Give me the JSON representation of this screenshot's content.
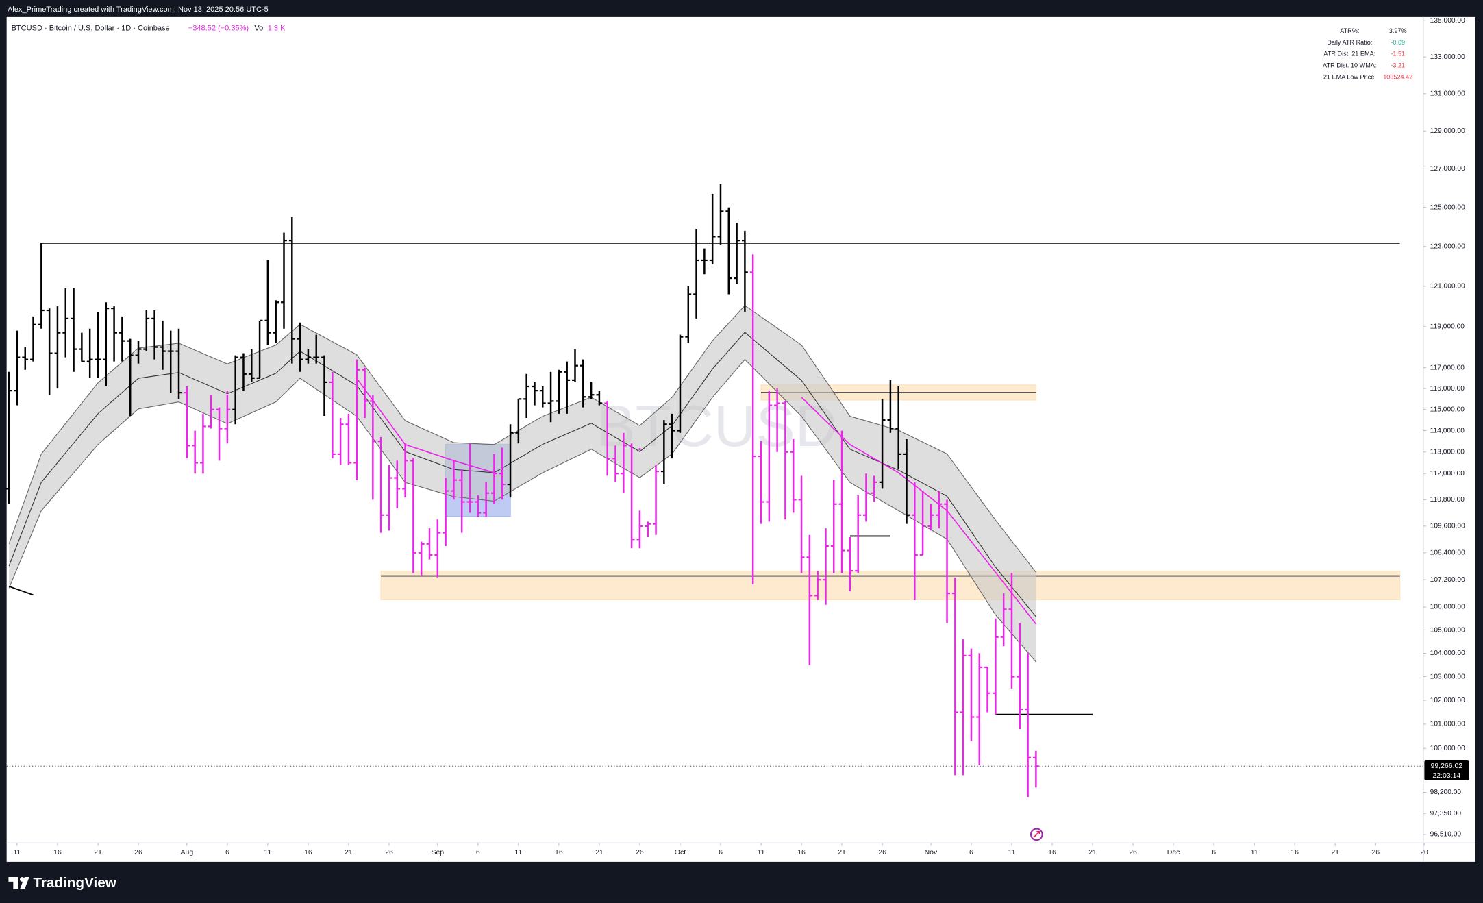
{
  "header": "Alex_PrimeTrading created with TradingView.com, Nov 13, 2025 20:56 UTC-5",
  "brand": "TradingView",
  "watermark": "BTCUSD",
  "legend": {
    "symbol": "BTCUSD · Bitcoin / U.S. Dollar · 1D · Coinbase",
    "change": "−348.52 (−0.35%)",
    "volume_label": "Vol",
    "volume": "1.3 K"
  },
  "table": {
    "rows": [
      [
        "ATR%:",
        "3.97%"
      ],
      [
        "Daily ATR Ratio:",
        "-0.09"
      ],
      [
        "ATR Dist. 21 EMA:",
        "-1.51"
      ],
      [
        "ATR Dist. 10 WMA:",
        "-3.21"
      ],
      [
        "21 EMA Low Price:",
        "103524.42"
      ]
    ],
    "value_colors": [
      "#131722",
      "#22ab94",
      "#f23645",
      "#f23645",
      "#f23645"
    ]
  },
  "chart_data": {
    "type": "ohlc",
    "log_scale": true,
    "grid": false,
    "colors": [
      "#000000",
      "#e926e9"
    ],
    "color_index": [
      0,
      0,
      0,
      0,
      0,
      0,
      0,
      0,
      0,
      0,
      0,
      0,
      0,
      0,
      0,
      0,
      0,
      0,
      0,
      0,
      0,
      0,
      1,
      1,
      1,
      1,
      1,
      1,
      0,
      0,
      0,
      0,
      0,
      0,
      0,
      0,
      0,
      0,
      0,
      0,
      1,
      1,
      1,
      1,
      1,
      1,
      1,
      1,
      1,
      1,
      1,
      1,
      1,
      1,
      1,
      1,
      1,
      1,
      1,
      1,
      1,
      1,
      0,
      0,
      0,
      0,
      0,
      0,
      0,
      0,
      0,
      0,
      0,
      0,
      1,
      1,
      1,
      1,
      1,
      1,
      1,
      0,
      0,
      0,
      0,
      0,
      0,
      0,
      0,
      0,
      0,
      0,
      1,
      1,
      1,
      1,
      1,
      1,
      1,
      1,
      1,
      1,
      1,
      1,
      1,
      1,
      1,
      1,
      0,
      0,
      0,
      0,
      1,
      1,
      1,
      1,
      1,
      1,
      1,
      1,
      1,
      1,
      1,
      1,
      1,
      1,
      1,
      1
    ],
    "x": [
      "Jul 10",
      "Jul 11",
      "Jul 12",
      "Jul 13",
      "Jul 14",
      "Jul 15",
      "Jul 16",
      "Jul 17",
      "Jul 18",
      "Jul 19",
      "Jul 20",
      "Jul 21",
      "Jul 22",
      "Jul 23",
      "Jul 24",
      "Jul 25",
      "Jul 26",
      "Jul 27",
      "Jul 28",
      "Jul 29",
      "Jul 30",
      "Jul 31",
      "Aug 1",
      "Aug 2",
      "Aug 3",
      "Aug 4",
      "Aug 5",
      "Aug 6",
      "Aug 7",
      "Aug 8",
      "Aug 9",
      "Aug 10",
      "Aug 11",
      "Aug 12",
      "Aug 13",
      "Aug 14",
      "Aug 15",
      "Aug 16",
      "Aug 17",
      "Aug 18",
      "Aug 19",
      "Aug 20",
      "Aug 21",
      "Aug 22",
      "Aug 23",
      "Aug 24",
      "Aug 25",
      "Aug 26",
      "Aug 27",
      "Aug 28",
      "Aug 29",
      "Aug 30",
      "Aug 31",
      "Sep 1",
      "Sep 2",
      "Sep 3",
      "Sep 4",
      "Sep 5",
      "Sep 6",
      "Sep 7",
      "Sep 8",
      "Sep 9",
      "Sep 10",
      "Sep 11",
      "Sep 12",
      "Sep 13",
      "Sep 14",
      "Sep 15",
      "Sep 16",
      "Sep 17",
      "Sep 18",
      "Sep 19",
      "Sep 20",
      "Sep 21",
      "Sep 22",
      "Sep 23",
      "Sep 24",
      "Sep 25",
      "Sep 26",
      "Sep 27",
      "Sep 28",
      "Sep 29",
      "Sep 30",
      "Oct 1",
      "Oct 2",
      "Oct 3",
      "Oct 4",
      "Oct 5",
      "Oct 6",
      "Oct 7",
      "Oct 8",
      "Oct 9",
      "Oct 10",
      "Oct 11",
      "Oct 12",
      "Oct 13",
      "Oct 14",
      "Oct 15",
      "Oct 16",
      "Oct 17",
      "Oct 18",
      "Oct 19",
      "Oct 20",
      "Oct 21",
      "Oct 22",
      "Oct 23",
      "Oct 24",
      "Oct 25",
      "Oct 26",
      "Oct 27",
      "Oct 28",
      "Oct 29",
      "Oct 30",
      "Oct 31",
      "Nov 1",
      "Nov 2",
      "Nov 3",
      "Nov 4",
      "Nov 5",
      "Nov 6",
      "Nov 7",
      "Nov 8",
      "Nov 9",
      "Nov 10",
      "Nov 11",
      "Nov 12",
      "Nov 13",
      "Nov 14"
    ],
    "open": [
      111300,
      115900,
      117500,
      117400,
      119100,
      119800,
      117700,
      118700,
      119400,
      117900,
      117300,
      117400,
      117400,
      119900,
      118700,
      118300,
      117600,
      117900,
      119400,
      118000,
      117800,
      117800,
      115800,
      113300,
      112500,
      114200,
      115000,
      114100,
      115000,
      117500,
      116700,
      116500,
      119300,
      118700,
      120200,
      123300,
      118400,
      117400,
      117500,
      117500,
      116300,
      112900,
      114300,
      112500,
      116900,
      115400,
      113500,
      110100,
      111800,
      111300,
      112600,
      108400,
      108800,
      108300,
      109300,
      111200,
      111700,
      110700,
      110700,
      110200,
      111100,
      112000,
      111500,
      113900,
      115500,
      116100,
      115900,
      115300,
      115400,
      116800,
      116400,
      117100,
      115600,
      115700,
      115300,
      112700,
      112000,
      113300,
      109000,
      109600,
      109700,
      112100,
      114300,
      114000,
      118500,
      120600,
      122300,
      122300,
      123500,
      124800,
      121400,
      123300,
      121700,
      112800,
      110700,
      115200,
      115300,
      113000,
      110800,
      108200,
      106500,
      107200,
      108700,
      110600,
      108500,
      107600,
      110100,
      111100,
      111600,
      114500,
      114100,
      112900,
      110100,
      108300,
      109600,
      110100,
      110600,
      106600,
      101500,
      103900,
      101300,
      103400,
      102300,
      104700,
      105900,
      103000,
      101600,
      99614.54
    ],
    "high": [
      116800,
      118800,
      118000,
      119500,
      123200,
      119900,
      120000,
      120900,
      120900,
      118700,
      118900,
      119700,
      120200,
      120000,
      119500,
      118400,
      118300,
      119800,
      119800,
      119300,
      118800,
      118900,
      116100,
      114000,
      114800,
      115700,
      115100,
      115700,
      117600,
      117700,
      117900,
      119300,
      122300,
      120300,
      123700,
      124500,
      119200,
      117900,
      118600,
      117600,
      116800,
      114600,
      114800,
      117400,
      117000,
      115700,
      113700,
      112400,
      112600,
      113400,
      112700,
      108900,
      109500,
      109900,
      111800,
      112600,
      112200,
      113400,
      111000,
      111600,
      112900,
      113200,
      114300,
      115500,
      116700,
      116300,
      116100,
      116800,
      116900,
      117300,
      117900,
      117400,
      116300,
      115900,
      115400,
      113300,
      113900,
      113400,
      110300,
      109800,
      112400,
      114500,
      114800,
      118600,
      121000,
      123900,
      122900,
      125700,
      126200,
      125000,
      124200,
      123800,
      122600,
      113500,
      115900,
      116000,
      115400,
      113600,
      111900,
      109200,
      107600,
      109500,
      111700,
      114000,
      109100,
      111000,
      112000,
      111900,
      115500,
      116400,
      116100,
      113600,
      111600,
      111200,
      110600,
      111200,
      110800,
      107300,
      104600,
      104200,
      104000,
      103400,
      105500,
      106600,
      107500,
      105300,
      104000,
      99900
    ],
    "low": [
      110600,
      115200,
      116900,
      117300,
      118900,
      115700,
      116000,
      117500,
      116800,
      117300,
      116500,
      116500,
      116100,
      117300,
      117300,
      114700,
      117200,
      117800,
      117400,
      116900,
      115800,
      115500,
      112700,
      112000,
      112000,
      114100,
      112600,
      113400,
      114300,
      115900,
      116300,
      116500,
      118100,
      118200,
      118900,
      117200,
      116800,
      117200,
      117200,
      114700,
      112700,
      112400,
      112400,
      111700,
      114600,
      110800,
      109300,
      109400,
      110400,
      110900,
      107500,
      107400,
      108100,
      107300,
      108700,
      110800,
      109300,
      110200,
      110000,
      110000,
      110600,
      110800,
      110900,
      113400,
      114600,
      115200,
      115100,
      114400,
      114800,
      114800,
      116300,
      115100,
      115500,
      115200,
      111900,
      111600,
      111100,
      108600,
      108600,
      109100,
      109200,
      111500,
      112700,
      113900,
      118200,
      119400,
      121600,
      122100,
      123100,
      120600,
      121100,
      119700,
      107000,
      109700,
      109800,
      113000,
      109900,
      110200,
      107500,
      103500,
      106300,
      106100,
      107500,
      107500,
      106700,
      107500,
      109800,
      110700,
      111300,
      113900,
      112200,
      109700,
      106300,
      108300,
      109400,
      109500,
      105300,
      98900,
      98900,
      100300,
      99300,
      101500,
      101400,
      104300,
      102500,
      100800,
      98000,
      98400
    ],
    "close": [
      115900,
      117500,
      117400,
      119100,
      119800,
      117700,
      118700,
      119400,
      117900,
      117300,
      117400,
      117400,
      119900,
      118700,
      118300,
      117600,
      117900,
      119400,
      118000,
      117800,
      117800,
      115800,
      113300,
      112500,
      114200,
      115000,
      114100,
      115000,
      117500,
      116700,
      116500,
      119300,
      118700,
      120200,
      123300,
      118400,
      117400,
      117500,
      117500,
      116300,
      112900,
      114300,
      112500,
      116900,
      115400,
      113500,
      110100,
      111800,
      111300,
      112600,
      108400,
      108800,
      108300,
      109300,
      111200,
      111700,
      110700,
      110700,
      110200,
      111100,
      112000,
      111500,
      113900,
      115500,
      116100,
      115900,
      115300,
      115400,
      116800,
      116400,
      117100,
      115600,
      115700,
      115300,
      112700,
      112000,
      113300,
      109000,
      109600,
      109700,
      112100,
      114300,
      114000,
      118500,
      120600,
      122300,
      122300,
      123500,
      124800,
      121400,
      123300,
      121700,
      112800,
      110700,
      115200,
      115300,
      113000,
      110800,
      108200,
      106500,
      107200,
      108700,
      110600,
      108500,
      107600,
      110100,
      111100,
      111600,
      114500,
      114100,
      112900,
      110100,
      108300,
      109600,
      110100,
      110600,
      106600,
      101500,
      103900,
      101300,
      103400,
      102300,
      104700,
      105900,
      103000,
      101600,
      99614.54,
      99266.02
    ],
    "bands": {
      "x": [
        "Jul 10",
        "Jul 14",
        "Jul 21",
        "Jul 26",
        "Jul 31",
        "Aug 6",
        "Aug 12",
        "Aug 15",
        "Aug 22",
        "Aug 28",
        "Sep 3",
        "Sep 8",
        "Sep 14",
        "Sep 20",
        "Sep 26",
        "Sep 30",
        "Oct 5",
        "Oct 9",
        "Oct 16",
        "Oct 22",
        "Oct 28",
        "Nov 3",
        "Nov 9",
        "Nov 14"
      ],
      "upper": [
        108800,
        112910,
        116270,
        117950,
        118190,
        117180,
        118100,
        119110,
        117630,
        114470,
        113440,
        113350,
        114680,
        115580,
        114240,
        115580,
        118310,
        120040,
        118100,
        114680,
        114020,
        112910,
        109870,
        107530
      ],
      "middle": [
        107810,
        111600,
        114800,
        116490,
        116770,
        115750,
        116730,
        117800,
        116150,
        113020,
        112190,
        112040,
        113360,
        114350,
        113020,
        114240,
        116940,
        118720,
        116390,
        113130,
        112160,
        110960,
        107760,
        105580
      ],
      "lower": [
        106830,
        110300,
        113350,
        115030,
        115360,
        114330,
        115360,
        116490,
        114680,
        111590,
        110940,
        110730,
        112040,
        113130,
        111810,
        112910,
        115580,
        117400,
        114680,
        111590,
        110300,
        109010,
        105660,
        103630
      ],
      "ema": [
        null,
        null,
        null,
        null,
        null,
        115820,
        null,
        null,
        116490,
        113350,
        112600,
        112040,
        null,
        null,
        113130,
        null,
        null,
        null,
        115580,
        113350,
        112040,
        110300,
        107530,
        105260
      ]
    },
    "levels": [
      {
        "price": 123170,
        "from": "Jul 14",
        "to": "Dec 29"
      },
      {
        "price": 109150,
        "from": "Oct 22",
        "to": "Oct 27"
      },
      {
        "price": 101410,
        "from": "Nov 9",
        "to": "Nov 21"
      }
    ],
    "zones": [
      {
        "top": 107580,
        "bottom": 106320,
        "line": 107370,
        "from": "Aug 25",
        "to": "Dec 29",
        "color": "#fde3bf"
      },
      {
        "top": 116170,
        "bottom": 115450,
        "line": 115800,
        "from": "Oct 11",
        "to": "Nov 14",
        "color": "#fde3bf"
      },
      {
        "top": 113360,
        "bottom": 110040,
        "from": "Sep 2",
        "to": "Sep 10",
        "color": "#a9b9ef"
      }
    ],
    "trendlines": [
      {
        "from": "Jul 10",
        "to": "Jul 13",
        "start": 106910,
        "end": 106530
      }
    ],
    "last_price": {
      "value": 99266.02,
      "label": "99,266.02",
      "countdown": "22:03:14"
    },
    "ylim": [
      96210,
      135210
    ],
    "yticks": [
      {
        "value": 135000,
        "label": "135,000.00"
      },
      {
        "value": 133000,
        "label": "133,000.00"
      },
      {
        "value": 131000,
        "label": "131,000.00"
      },
      {
        "value": 129000,
        "label": "129,000.00"
      },
      {
        "value": 127000,
        "label": "127,000.00"
      },
      {
        "value": 125000,
        "label": "125,000.00"
      },
      {
        "value": 123000,
        "label": "123,000.00"
      },
      {
        "value": 121000,
        "label": "121,000.00"
      },
      {
        "value": 119000,
        "label": "119,000.00"
      },
      {
        "value": 117000,
        "label": "117,000.00"
      },
      {
        "value": 116000,
        "label": "116,000.00"
      },
      {
        "value": 115000,
        "label": "115,000.00"
      },
      {
        "value": 114000,
        "label": "114,000.00"
      },
      {
        "value": 113000,
        "label": "113,000.00"
      },
      {
        "value": 112000,
        "label": "112,000.00"
      },
      {
        "value": 110800,
        "label": "110,800.00"
      },
      {
        "value": 109600,
        "label": "109,600.00"
      },
      {
        "value": 108400,
        "label": "108,400.00"
      },
      {
        "value": 107200,
        "label": "107,200.00"
      },
      {
        "value": 106000,
        "label": "106,000.00"
      },
      {
        "value": 105000,
        "label": "105,000.00"
      },
      {
        "value": 104000,
        "label": "104,000.00"
      },
      {
        "value": 103000,
        "label": "103,000.00"
      },
      {
        "value": 102000,
        "label": "102,000.00"
      },
      {
        "value": 101000,
        "label": "101,000.00"
      },
      {
        "value": 100000,
        "label": "100,000.00"
      },
      {
        "value": 98200,
        "label": "98,200.00"
      },
      {
        "value": 97350,
        "label": "97,350.00"
      },
      {
        "value": 96510,
        "label": "96,510.00"
      }
    ],
    "xlim": [
      "Jul 10",
      "Jan 1"
    ],
    "xticks": [
      {
        "value": "Jul 11",
        "label": "11"
      },
      {
        "value": "Jul 16",
        "label": "16"
      },
      {
        "value": "Jul 21",
        "label": "21"
      },
      {
        "value": "Jul 26",
        "label": "26"
      },
      {
        "value": "Aug 1",
        "label": "Aug"
      },
      {
        "value": "Aug 6",
        "label": "6"
      },
      {
        "value": "Aug 11",
        "label": "11"
      },
      {
        "value": "Aug 16",
        "label": "16"
      },
      {
        "value": "Aug 21",
        "label": "21"
      },
      {
        "value": "Aug 26",
        "label": "26"
      },
      {
        "value": "Sep 1",
        "label": "Sep"
      },
      {
        "value": "Sep 6",
        "label": "6"
      },
      {
        "value": "Sep 11",
        "label": "11"
      },
      {
        "value": "Sep 16",
        "label": "16"
      },
      {
        "value": "Sep 21",
        "label": "21"
      },
      {
        "value": "Sep 26",
        "label": "26"
      },
      {
        "value": "Oct 1",
        "label": "Oct"
      },
      {
        "value": "Oct 6",
        "label": "6"
      },
      {
        "value": "Oct 11",
        "label": "11"
      },
      {
        "value": "Oct 16",
        "label": "16"
      },
      {
        "value": "Oct 21",
        "label": "21"
      },
      {
        "value": "Oct 26",
        "label": "26"
      },
      {
        "value": "Nov 1",
        "label": "Nov"
      },
      {
        "value": "Nov 6",
        "label": "6"
      },
      {
        "value": "Nov 11",
        "label": "11"
      },
      {
        "value": "Nov 16",
        "label": "16"
      },
      {
        "value": "Nov 21",
        "label": "21"
      },
      {
        "value": "Nov 26",
        "label": "26"
      },
      {
        "value": "Dec 1",
        "label": "Dec"
      },
      {
        "value": "Dec 6",
        "label": "6"
      },
      {
        "value": "Dec 11",
        "label": "11"
      },
      {
        "value": "Dec 16",
        "label": "16"
      },
      {
        "value": "Dec 21",
        "label": "21"
      },
      {
        "value": "Dec 26",
        "label": "26"
      },
      {
        "value": "Jan 1",
        "label": "20"
      }
    ]
  }
}
